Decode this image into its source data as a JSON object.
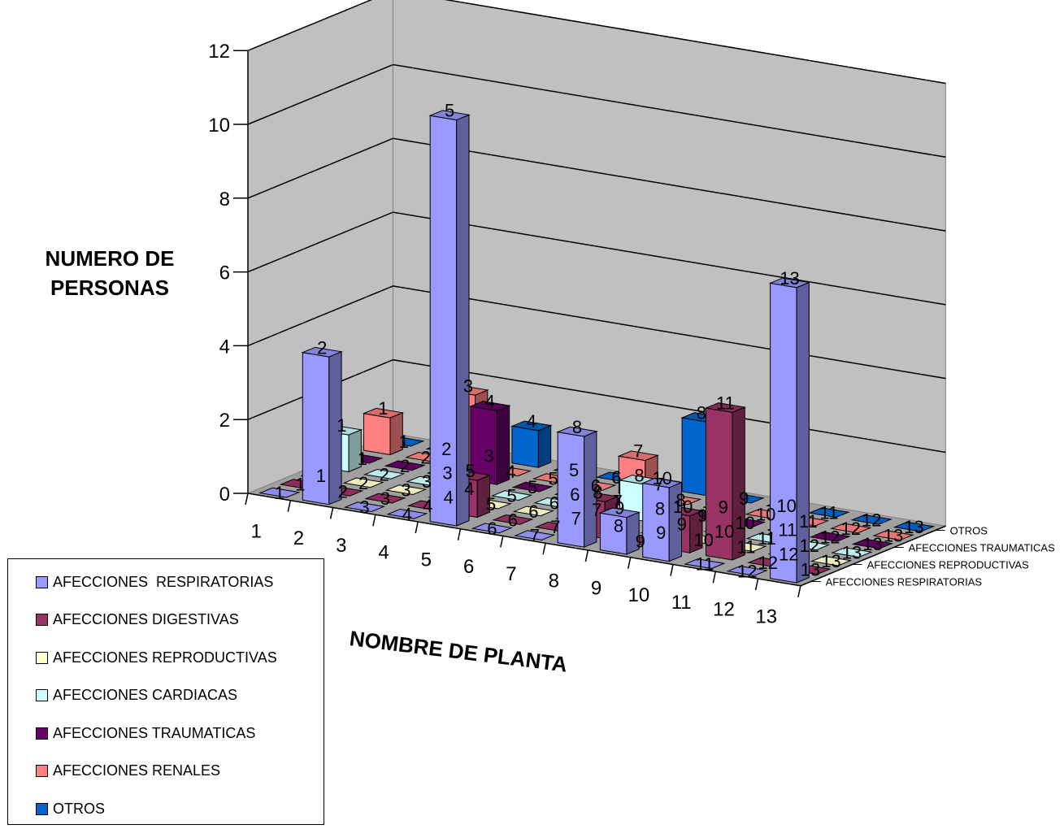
{
  "chart_data": {
    "type": "bar",
    "subtype": "3d-column",
    "title": "",
    "ylabel": "NUMERO DE PERSONAS",
    "xlabel": "NOMBRE DE PLANTA",
    "ylim": [
      0,
      12
    ],
    "yticks": [
      0,
      2,
      4,
      6,
      8,
      10,
      12
    ],
    "grid": true,
    "legend_position": "bottom-left",
    "categories": [
      "1",
      "2",
      "3",
      "4",
      "5",
      "6",
      "7",
      "8",
      "9",
      "10",
      "11",
      "12",
      "13"
    ],
    "depth_axis_labels": [
      "AFECCIONES RESPIRATORIAS",
      "AFECCIONES REPRODUCTIVAS",
      "AFECCIONES TRAUMATICAS",
      "OTROS"
    ],
    "series": [
      {
        "name": "AFECCIONES  RESPIRATORIAS",
        "color": "#9999ff",
        "values": [
          0,
          4,
          0,
          0,
          11,
          0,
          0,
          3,
          1,
          2,
          0,
          0,
          8
        ]
      },
      {
        "name": "AFECCIONES DIGESTIVAS",
        "color": "#993366",
        "values": [
          0,
          0,
          0,
          0,
          1,
          0,
          0,
          1,
          0,
          1,
          4,
          0,
          0
        ]
      },
      {
        "name": "AFECCIONES REPRODUCTIVAS",
        "color": "#ffffcc",
        "values": [
          0,
          0,
          0,
          0,
          0,
          0,
          0,
          0,
          0,
          0,
          0,
          0,
          0
        ]
      },
      {
        "name": "AFECCIONES CARDIACAS",
        "color": "#ccffff",
        "values": [
          1,
          0,
          0,
          0,
          0,
          0,
          0,
          1,
          0,
          0,
          0,
          0,
          0
        ]
      },
      {
        "name": "AFECCIONES TRAUMATICAS",
        "color": "#660066",
        "values": [
          0,
          0,
          0,
          2,
          0,
          0,
          0,
          0,
          0,
          0,
          0,
          0,
          0
        ]
      },
      {
        "name": "AFECCIONES RENALES",
        "color": "#ff8080",
        "values": [
          1,
          0,
          2,
          0,
          0,
          0,
          1,
          0,
          0,
          0,
          0,
          0,
          0
        ]
      },
      {
        "name": "OTROS",
        "color": "#0066cc",
        "values": [
          0,
          0,
          0,
          1,
          0,
          0,
          0,
          2,
          0,
          0,
          0,
          0,
          0
        ]
      }
    ]
  }
}
